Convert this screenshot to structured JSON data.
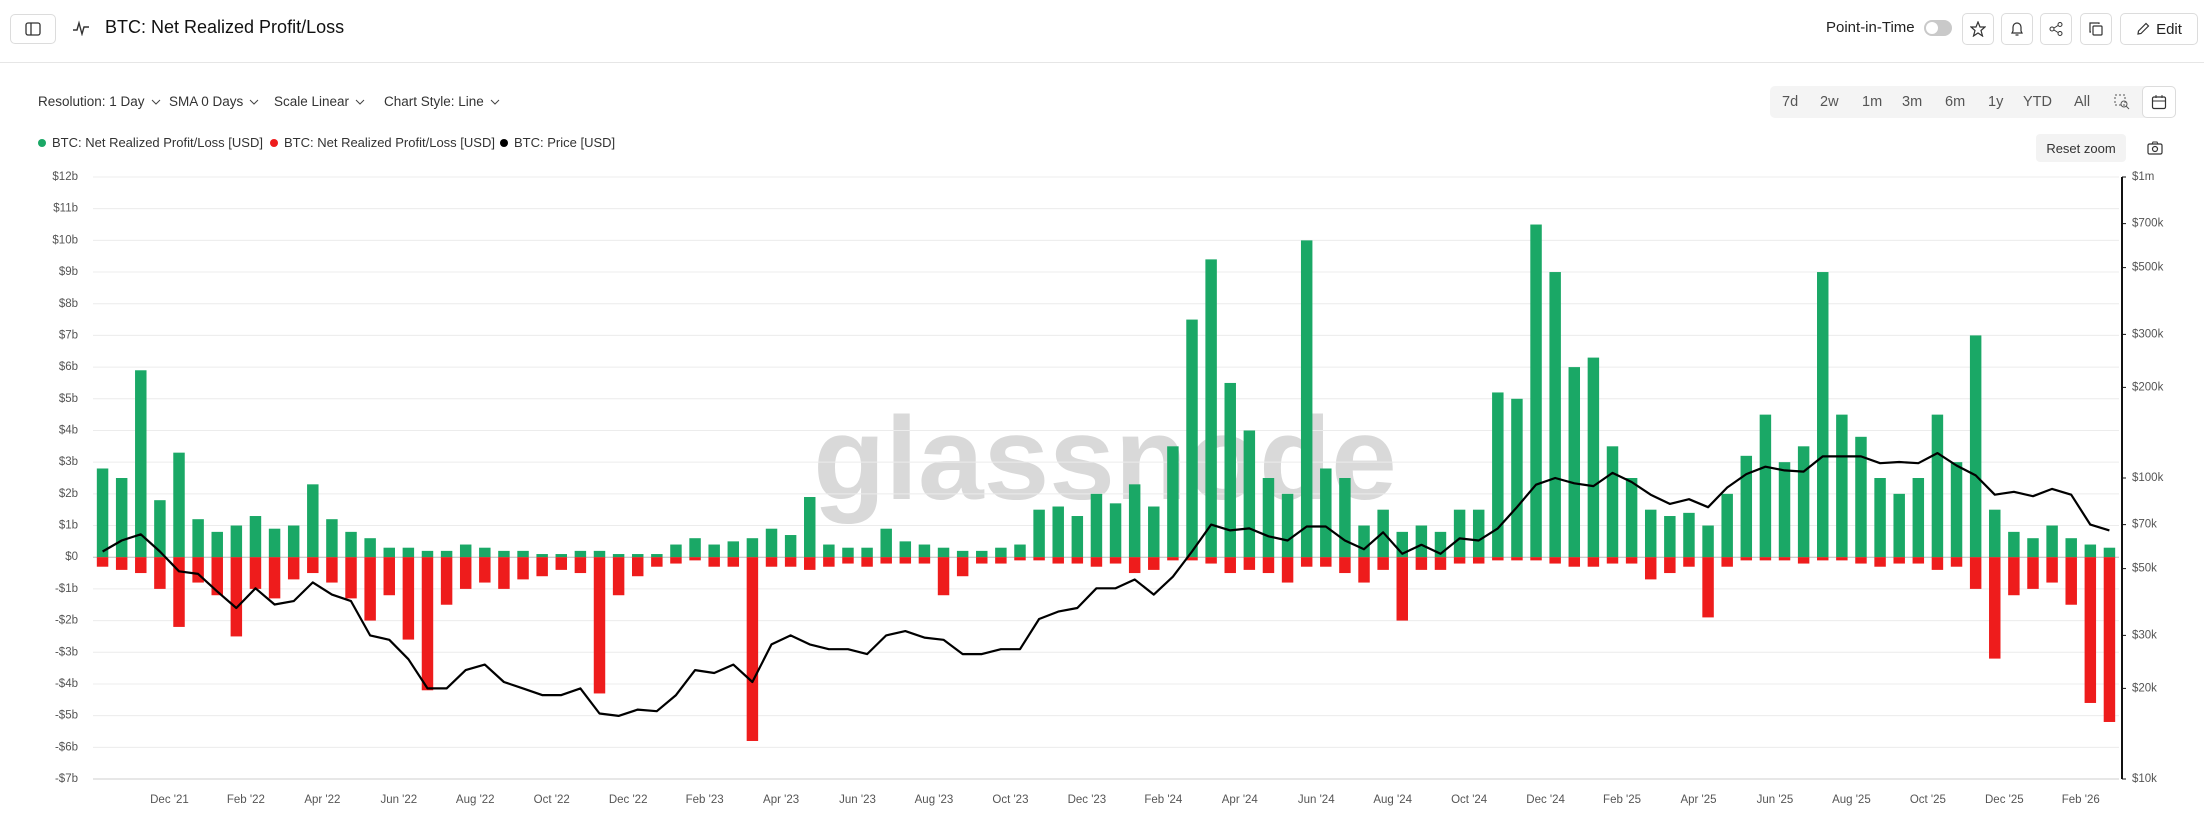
{
  "header": {
    "title": "BTC: Net Realized Profit/Loss",
    "point_in_time": "Point-in-Time",
    "edit": "Edit"
  },
  "toolbar": {
    "dropdowns": [
      "Resolution: 1 Day",
      "SMA 0 Days",
      "Scale Linear",
      "Chart Style: Line"
    ],
    "ranges": [
      "7d",
      "2w",
      "1m",
      "3m",
      "6m",
      "1y",
      "YTD",
      "All"
    ],
    "reset_zoom": "Reset zoom"
  },
  "watermark": "glassnode",
  "chart_data": {
    "type": "bar",
    "categories": [
      null,
      null,
      null,
      null,
      "Dec '21",
      null,
      null,
      null,
      "Feb '22",
      null,
      null,
      null,
      "Apr '22",
      null,
      null,
      null,
      "Jun '22",
      null,
      null,
      null,
      "Aug '22",
      null,
      null,
      null,
      "Oct '22",
      null,
      null,
      null,
      "Dec '22",
      null,
      null,
      null,
      "Feb '23",
      null,
      null,
      null,
      "Apr '23",
      null,
      null,
      null,
      "Jun '23",
      null,
      null,
      null,
      "Aug '23",
      null,
      null,
      null,
      "Oct '23",
      null,
      null,
      null,
      "Dec '23",
      null,
      null,
      null,
      "Feb '24",
      null,
      null,
      null,
      "Apr '24",
      null,
      null,
      null,
      "Jun '24",
      null,
      null,
      null,
      "Aug '24",
      null,
      null,
      null,
      "Oct '24",
      null,
      null,
      null,
      "Dec '24",
      null,
      null,
      null,
      "Feb '25",
      null,
      null,
      null,
      "Apr '25",
      null,
      null,
      null,
      "Jun '25",
      null,
      null,
      null,
      "Aug '25",
      null,
      null,
      null,
      "Oct '25",
      null,
      null,
      null,
      "Dec '25",
      null,
      null,
      null,
      "Feb '26",
      null
    ],
    "series": [
      {
        "name": "BTC: Net Realized Profit/Loss [USD]",
        "color": "#1aa866",
        "values": [
          2.8,
          2.5,
          5.9,
          1.8,
          3.3,
          1.2,
          0.8,
          1.0,
          1.3,
          0.9,
          1.0,
          2.3,
          1.2,
          0.8,
          0.6,
          0.3,
          0.3,
          0.2,
          0.2,
          0.4,
          0.3,
          0.2,
          0.2,
          0.1,
          0.1,
          0.2,
          0.2,
          0.1,
          0.1,
          0.1,
          0.4,
          0.6,
          0.4,
          0.5,
          0.6,
          0.9,
          0.7,
          1.9,
          0.4,
          0.3,
          0.3,
          0.9,
          0.5,
          0.4,
          0.3,
          0.2,
          0.2,
          0.3,
          0.4,
          1.5,
          1.6,
          1.3,
          2.0,
          1.7,
          2.3,
          1.6,
          3.5,
          7.5,
          9.4,
          5.5,
          4.0,
          2.5,
          2.0,
          10.0,
          2.8,
          2.5,
          1.0,
          1.5,
          0.8,
          1.0,
          0.8,
          1.5,
          1.5,
          5.2,
          5.0,
          10.5,
          9.0,
          6.0,
          6.3,
          3.5,
          2.5,
          1.5,
          1.3,
          1.4,
          1.0,
          2.0,
          3.2,
          4.5,
          3.0,
          3.5,
          9.0,
          4.5,
          3.8,
          2.5,
          2.0,
          2.5,
          4.5,
          3.0,
          7.0,
          1.5,
          0.8,
          0.6,
          1.0,
          0.6,
          0.4,
          0.3
        ]
      },
      {
        "name": "BTC: Net Realized Profit/Loss [USD]",
        "color": "#ee1c1c",
        "values": [
          -0.3,
          -0.4,
          -0.5,
          -1.0,
          -2.2,
          -0.8,
          -1.2,
          -2.5,
          -1.0,
          -1.3,
          -0.7,
          -0.5,
          -0.8,
          -1.3,
          -2.0,
          -1.2,
          -2.6,
          -4.2,
          -1.5,
          -1.0,
          -0.8,
          -1.0,
          -0.7,
          -0.6,
          -0.4,
          -0.5,
          -4.3,
          -1.2,
          -0.6,
          -0.3,
          -0.2,
          -0.1,
          -0.3,
          -0.3,
          -5.8,
          -0.3,
          -0.3,
          -0.4,
          -0.3,
          -0.2,
          -0.3,
          -0.2,
          -0.2,
          -0.2,
          -1.2,
          -0.6,
          -0.2,
          -0.2,
          -0.1,
          -0.1,
          -0.2,
          -0.2,
          -0.3,
          -0.2,
          -0.5,
          -0.4,
          -0.1,
          -0.1,
          -0.2,
          -0.5,
          -0.4,
          -0.5,
          -0.8,
          -0.3,
          -0.3,
          -0.5,
          -0.8,
          -0.4,
          -2.0,
          -0.4,
          -0.4,
          -0.2,
          -0.2,
          -0.1,
          -0.1,
          -0.1,
          -0.2,
          -0.3,
          -0.3,
          -0.2,
          -0.2,
          -0.7,
          -0.5,
          -0.3,
          -1.9,
          -0.3,
          -0.1,
          -0.1,
          -0.1,
          -0.2,
          -0.1,
          -0.1,
          -0.2,
          -0.3,
          -0.2,
          -0.2,
          -0.4,
          -0.3,
          -1.0,
          -3.2,
          -1.2,
          -1.0,
          -0.8,
          -1.5,
          -4.6,
          -5.2
        ]
      },
      {
        "name": "BTC: Price [USD]",
        "color": "#000000",
        "type": "line",
        "axis": "y2",
        "values": [
          57,
          62,
          65,
          57,
          49,
          48,
          42,
          37,
          43,
          38,
          39,
          45,
          41,
          39,
          30,
          29,
          25,
          20,
          20,
          23,
          24,
          21,
          20,
          19,
          19,
          20,
          16.5,
          16.2,
          17,
          16.8,
          19,
          23,
          22.5,
          24,
          21,
          28,
          30,
          28,
          27,
          27,
          26,
          30,
          31,
          29.5,
          29,
          26,
          26,
          27,
          27,
          34,
          36,
          37,
          43,
          43,
          46,
          41,
          47,
          57,
          70,
          67,
          68,
          64,
          62,
          69,
          69,
          62,
          58,
          66,
          56,
          60,
          56,
          63,
          62,
          68,
          80,
          95,
          100,
          96,
          94,
          104,
          97,
          88,
          82,
          85,
          80,
          93,
          103,
          109,
          106,
          105,
          118,
          118,
          118,
          112,
          113,
          112,
          121,
          110,
          102,
          88,
          90,
          87,
          92,
          88,
          70,
          67
        ]
      }
    ],
    "ylim": [
      -7,
      12
    ],
    "yticks": [
      {
        "value": -7,
        "label": "-$7b"
      },
      {
        "value": -6,
        "label": "-$6b"
      },
      {
        "value": -5,
        "label": "-$5b"
      },
      {
        "value": -4,
        "label": "-$4b"
      },
      {
        "value": -3,
        "label": "-$3b"
      },
      {
        "value": -2,
        "label": "-$2b"
      },
      {
        "value": -1,
        "label": "-$1b"
      },
      {
        "value": 0,
        "label": "$0"
      },
      {
        "value": 1,
        "label": "$1b"
      },
      {
        "value": 2,
        "label": "$2b"
      },
      {
        "value": 3,
        "label": "$3b"
      },
      {
        "value": 4,
        "label": "$4b"
      },
      {
        "value": 5,
        "label": "$5b"
      },
      {
        "value": 6,
        "label": "$6b"
      },
      {
        "value": 7,
        "label": "$7b"
      },
      {
        "value": 8,
        "label": "$8b"
      },
      {
        "value": 9,
        "label": "$9b"
      },
      {
        "value": 10,
        "label": "$10b"
      },
      {
        "value": 11,
        "label": "$11b"
      },
      {
        "value": 12,
        "label": "$12b"
      }
    ],
    "y2lim": [
      10,
      1000
    ],
    "y2scale": "log",
    "y2ticks": [
      {
        "value": 10,
        "label": "$10k"
      },
      {
        "value": 20,
        "label": "$20k"
      },
      {
        "value": 30,
        "label": "$30k"
      },
      {
        "value": 50,
        "label": "$50k"
      },
      {
        "value": 70,
        "label": "$70k"
      },
      {
        "value": 100,
        "label": "$100k"
      },
      {
        "value": 200,
        "label": "$200k"
      },
      {
        "value": 300,
        "label": "$300k"
      },
      {
        "value": 500,
        "label": "$500k"
      },
      {
        "value": 700,
        "label": "$700k"
      },
      {
        "value": 1000,
        "label": "$1m"
      }
    ],
    "grid": true
  }
}
